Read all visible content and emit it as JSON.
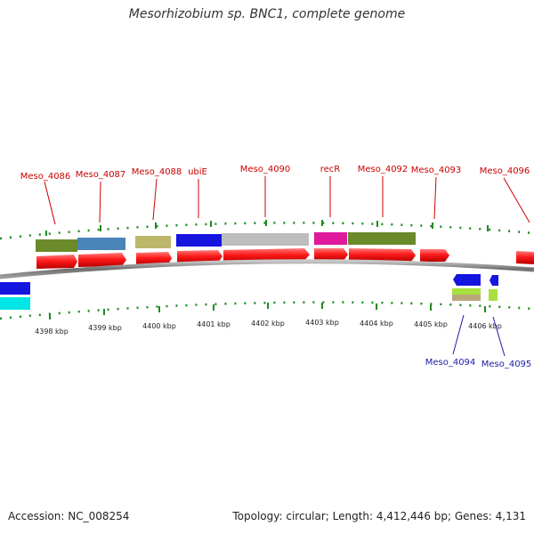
{
  "title": "Mesorhizobium sp. BNC1, complete genome",
  "footer": {
    "accession": "Accession: NC_008254",
    "summary": "Topology: circular; Length: 4,412,446 bp; Genes: 4,131"
  },
  "colors": {
    "cds": "#ee1111",
    "tick": "#1e8a1e",
    "backbone": "#777777",
    "label_top": "#cc0000",
    "label_bottom": "#1a1aa8"
  },
  "kbp_labels": [
    "4398 kbp",
    "4399 kbp",
    "4400 kbp",
    "4401 kbp",
    "4402 kbp",
    "4403 kbp",
    "4404 kbp",
    "4405 kbp",
    "4406 kbp"
  ],
  "gene_labels_top": [
    "Meso_4086",
    "Meso_4087",
    "Meso_4088",
    "ubiE",
    "Meso_4090",
    "recR",
    "Meso_4092",
    "Meso_4093",
    "Meso_4096"
  ],
  "gene_labels_bottom": [
    "Meso_4094",
    "Meso_4095"
  ],
  "cog_colors_top": [
    "#6b8a2a",
    "#4a84b8",
    "#bdb76b",
    "#1515e0",
    "#bdbdbd",
    "#e01a9c",
    "#6b8a2a"
  ],
  "cog_colors_bottom": [
    "#b8a87a",
    "#a8e040"
  ],
  "left_edge_colors": [
    "#1515e0",
    "#00e5e5"
  ]
}
